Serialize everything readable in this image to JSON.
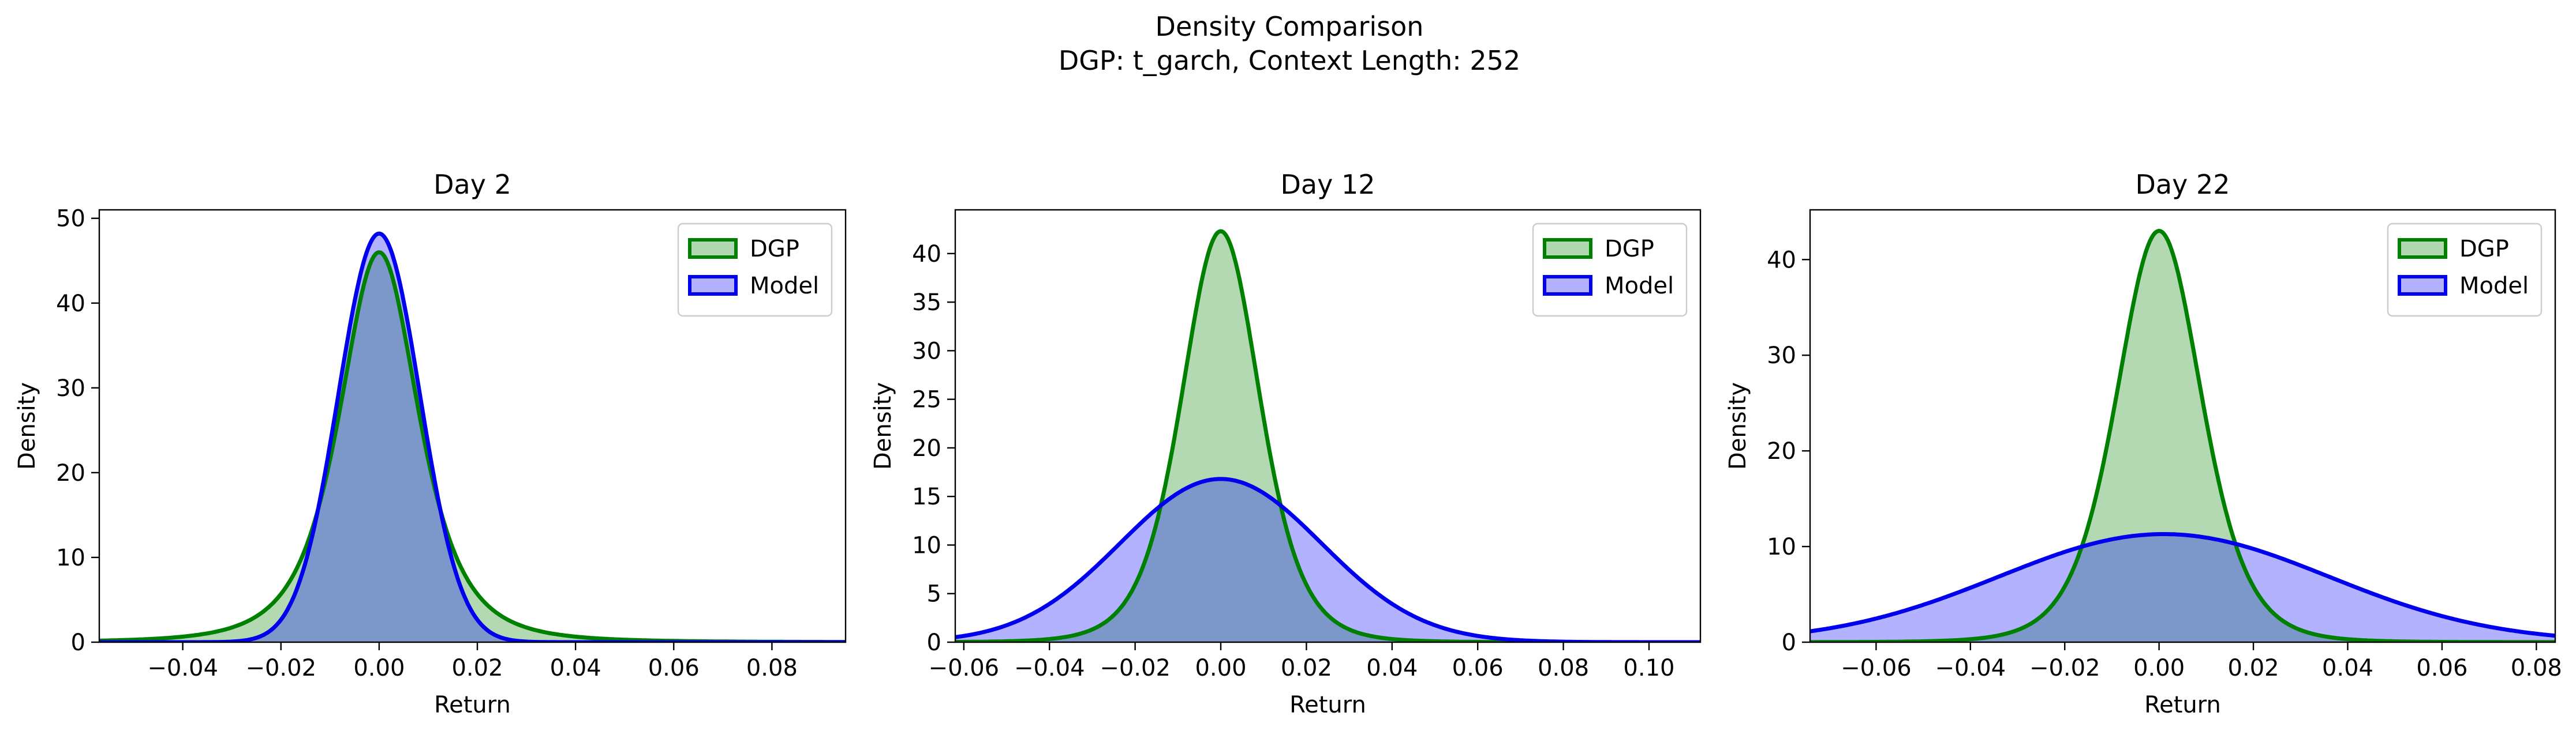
{
  "figure": {
    "suptitle_line1": "Density Comparison",
    "suptitle_line2": "DGP: t_garch, Context Length: 252"
  },
  "colors": {
    "dgp_line": "#008000",
    "dgp_fill": "#b2d8b2",
    "model_line": "#0000ee",
    "model_fill": "#b2b2ff",
    "overlap_fill": "#7f99c8"
  },
  "chart_data": [
    {
      "type": "area",
      "title": "Day 2",
      "xlabel": "Return",
      "ylabel": "Density",
      "xlim": [
        -0.057,
        0.095
      ],
      "ylim": [
        0,
        51
      ],
      "xticks": [
        -0.04,
        -0.02,
        0.0,
        0.02,
        0.04,
        0.06,
        0.08
      ],
      "xtick_labels": [
        "−0.04",
        "−0.02",
        "0.00",
        "0.02",
        "0.04",
        "0.06",
        "0.08"
      ],
      "yticks": [
        0,
        10,
        20,
        30,
        40,
        50
      ],
      "ytick_labels": [
        "0",
        "10",
        "20",
        "30",
        "40",
        "50"
      ],
      "legend_position": "top-right",
      "series": [
        {
          "name": "DGP",
          "kind": "t",
          "center": 0.0,
          "peak": 46.0,
          "scale": 0.0085,
          "df": 3,
          "x_range": [
            -0.057,
            0.095
          ]
        },
        {
          "name": "Model",
          "kind": "normal",
          "center": 0.0,
          "peak": 48.2,
          "sigma": 0.0083,
          "x_range": [
            -0.057,
            0.095
          ]
        }
      ]
    },
    {
      "type": "area",
      "title": "Day 12",
      "xlabel": "Return",
      "ylabel": "Density",
      "xlim": [
        -0.062,
        0.112
      ],
      "ylim": [
        0,
        44.5
      ],
      "xticks": [
        -0.06,
        -0.04,
        -0.02,
        0.0,
        0.02,
        0.04,
        0.06,
        0.08,
        0.1
      ],
      "xtick_labels": [
        "−0.06",
        "−0.04",
        "−0.02",
        "0.00",
        "0.02",
        "0.04",
        "0.06",
        "0.08",
        "0.10"
      ],
      "yticks": [
        0,
        5,
        10,
        15,
        20,
        25,
        30,
        35,
        40
      ],
      "ytick_labels": [
        "0",
        "5",
        "10",
        "15",
        "20",
        "25",
        "30",
        "35",
        "40"
      ],
      "legend_position": "top-right",
      "series": [
        {
          "name": "DGP",
          "kind": "t",
          "center": 0.0,
          "peak": 42.3,
          "scale": 0.0094,
          "df": 6,
          "x_range": [
            -0.062,
            0.112
          ]
        },
        {
          "name": "Model",
          "kind": "normal",
          "center": 0.0,
          "peak": 16.8,
          "sigma": 0.0235,
          "x_range": [
            -0.062,
            0.112
          ]
        }
      ]
    },
    {
      "type": "area",
      "title": "Day 22",
      "xlabel": "Return",
      "ylabel": "Density",
      "xlim": [
        -0.074,
        0.084
      ],
      "ylim": [
        0,
        45.2
      ],
      "xticks": [
        -0.06,
        -0.04,
        -0.02,
        0.0,
        0.02,
        0.04,
        0.06,
        0.08
      ],
      "xtick_labels": [
        "−0.06",
        "−0.04",
        "−0.02",
        "0.00",
        "0.02",
        "0.04",
        "0.06",
        "0.08"
      ],
      "yticks": [
        0,
        10,
        20,
        30,
        40
      ],
      "ytick_labels": [
        "0",
        "10",
        "20",
        "30",
        "40"
      ],
      "legend_position": "top-right",
      "series": [
        {
          "name": "DGP",
          "kind": "t",
          "center": 0.0,
          "peak": 43.0,
          "scale": 0.0093,
          "df": 6,
          "x_range": [
            -0.074,
            0.084
          ]
        },
        {
          "name": "Model",
          "kind": "normal",
          "center": 0.001,
          "peak": 11.3,
          "sigma": 0.035,
          "x_range": [
            -0.074,
            0.084
          ]
        }
      ]
    }
  ]
}
